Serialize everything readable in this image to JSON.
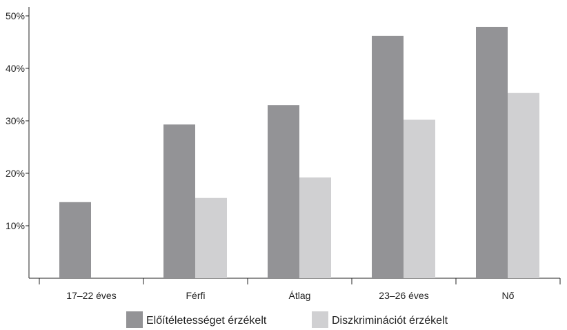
{
  "chart_data": {
    "type": "bar",
    "title": "",
    "xlabel": "",
    "ylabel": "",
    "categories": [
      "17–22 éves",
      "Férfi",
      "Átlag",
      "23–26 éves",
      "Nő"
    ],
    "series": [
      {
        "name": "Előítéletességet érzékelt",
        "color": "#939396",
        "values": [
          14.5,
          29.3,
          33.0,
          46.2,
          47.9
        ]
      },
      {
        "name": "Diszkriminációt érzékelt",
        "color": "#d0d0d2",
        "values": [
          null,
          15.3,
          19.2,
          30.2,
          35.3
        ]
      }
    ],
    "ylim": [
      0,
      50
    ],
    "yticks": [
      10,
      20,
      30,
      40,
      50
    ],
    "ytick_labels": [
      "10%",
      "20%",
      "30%",
      "40%",
      "50%"
    ],
    "grid": false,
    "legend_position": "bottom"
  }
}
